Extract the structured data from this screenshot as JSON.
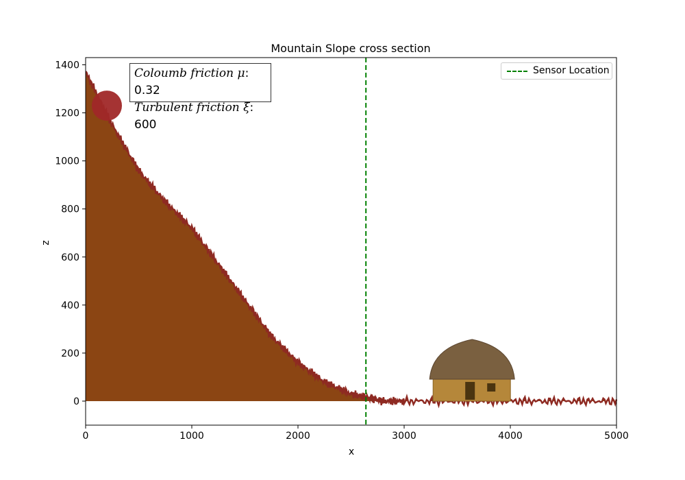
{
  "chart_data": {
    "type": "area",
    "title": "Mountain Slope cross section",
    "xlabel": "x",
    "ylabel": "z",
    "xlim": [
      0,
      5000
    ],
    "ylim": [
      -100,
      1430
    ],
    "xticks": [
      "0",
      "1000",
      "2000",
      "3000",
      "4000",
      "5000"
    ],
    "yticks": [
      "0",
      "200",
      "400",
      "600",
      "800",
      "1000",
      "1200",
      "1400"
    ],
    "grid": false,
    "legend": {
      "placement": "top-right",
      "entries": [
        {
          "label": "Sensor Location",
          "style": "dashed",
          "color": "#008000"
        }
      ]
    },
    "series": [
      {
        "x": [
          0,
          250,
          500,
          750,
          1000,
          1250,
          1500,
          1750,
          2000,
          2250,
          2500,
          2650,
          2800,
          3000,
          3500,
          4000,
          4500,
          5000
        ],
        "z": [
          1370,
          1150,
          960,
          830,
          720,
          570,
          420,
          270,
          160,
          80,
          30,
          15,
          0,
          0,
          0,
          0,
          0,
          0
        ],
        "fill_color": "#8b4513"
      }
    ],
    "sensor_location_x": 2640,
    "boulder": {
      "x": 200,
      "z": 1230,
      "color": "#a02828"
    },
    "house": {
      "x": 3640,
      "z": 0
    },
    "annotation": {
      "line1_label": "Coloumb friction",
      "line1_symbol": "μ",
      "line1_value": "0.32",
      "line2_label": "Turbulent friction",
      "line2_symbol": "ξ",
      "line2_value": "600"
    }
  }
}
